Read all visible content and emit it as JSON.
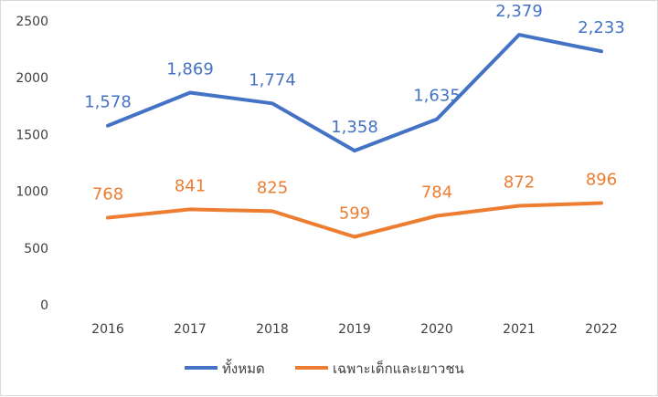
{
  "chart_data": {
    "type": "line",
    "categories": [
      "2016",
      "2017",
      "2018",
      "2019",
      "2020",
      "2021",
      "2022"
    ],
    "ylim": [
      0,
      2500
    ],
    "yticks": [
      0,
      500,
      1000,
      1500,
      2000,
      2500
    ],
    "grid": false,
    "legend_position": "bottom",
    "series": [
      {
        "name": "ทั้งหมด",
        "color": "#4472c4",
        "values": [
          1578,
          1869,
          1774,
          1358,
          1635,
          2379,
          2233
        ],
        "labels": [
          "1,578",
          "1,869",
          "1,774",
          "1,358",
          "1,635",
          "2,379",
          "2,233"
        ]
      },
      {
        "name": "เฉพาะเด็กและเยาวชน",
        "color": "#ed7d31",
        "values": [
          768,
          841,
          825,
          599,
          784,
          872,
          896
        ],
        "labels": [
          "768",
          "841",
          "825",
          "599",
          "784",
          "872",
          "896"
        ]
      }
    ]
  }
}
